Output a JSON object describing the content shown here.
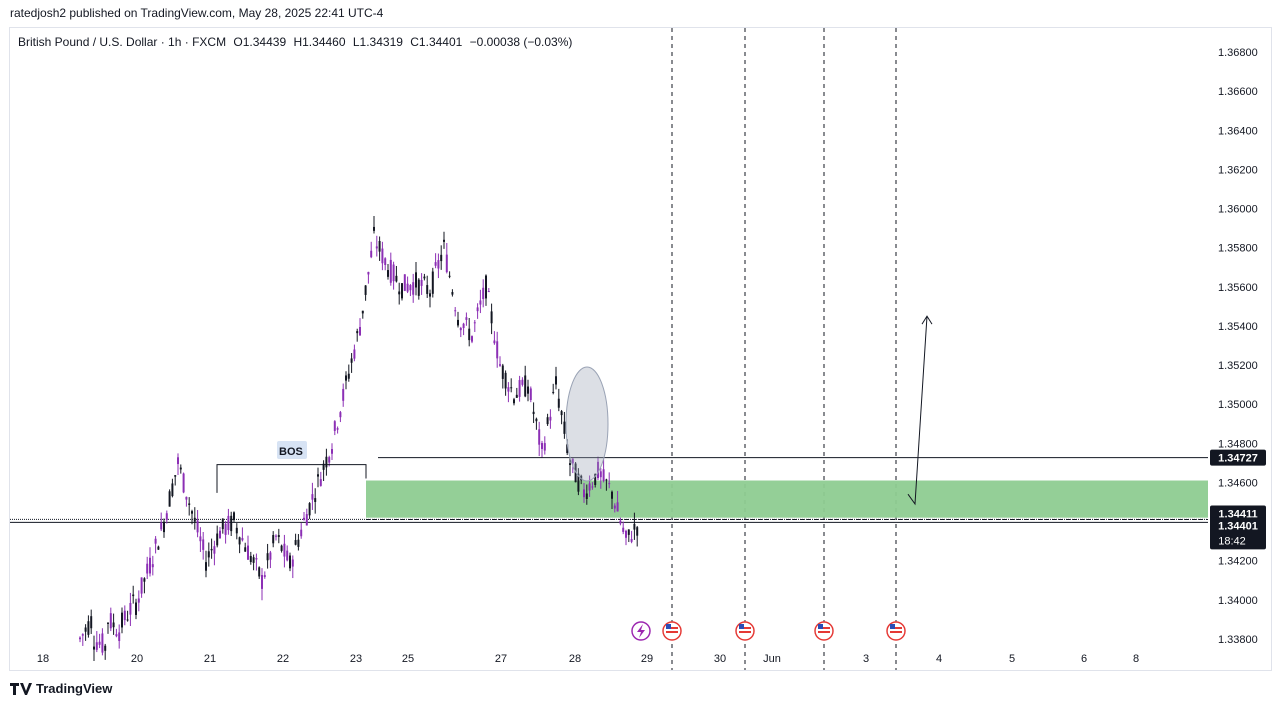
{
  "header": {
    "publisher": "ratedjosh2 published on TradingView.com, May 28, 2025 22:41 UTC-4"
  },
  "legend": {
    "symbol": "British Pound / U.S. Dollar · 1h · FXCM",
    "open": "O1.34439",
    "high": "H1.34460",
    "low": "L1.34319",
    "close": "C1.34401",
    "change": "−0.00038 (−0.03%)"
  },
  "footer": {
    "brand": "TradingView"
  },
  "chart_data": {
    "type": "candlestick",
    "symbol": "GBPUSD",
    "timeframe": "1h",
    "y_axis": {
      "range": [
        1.3375,
        1.3695
      ],
      "ticks": [
        "1.36800",
        "1.36600",
        "1.36400",
        "1.36200",
        "1.36000",
        "1.35800",
        "1.35600",
        "1.35400",
        "1.35200",
        "1.35000",
        "1.34800",
        "1.34600",
        "1.34400",
        "1.34200",
        "1.34000",
        "1.33800"
      ]
    },
    "x_axis": {
      "ticks": [
        "18",
        "20",
        "21",
        "22",
        "23",
        "25",
        "27",
        "28",
        "29",
        "30",
        "Jun",
        "3",
        "4",
        "5",
        "6",
        "8"
      ]
    },
    "price_labels": {
      "level": "1.34727",
      "zone_mid": "1.34411",
      "last": "1.34401",
      "countdown": "18:42"
    },
    "annotations": {
      "bos_label": "BOS",
      "bos_level": 1.34727,
      "demand_zone": [
        1.3442,
        1.3461
      ],
      "zone_midline": 1.34411,
      "last_price": 1.34401,
      "projection": {
        "from_price": 1.3454,
        "dip_price": 1.3449,
        "to_price": 1.3545
      }
    },
    "path_points": [
      [
        1.338,
        1.3392
      ],
      [
        1.338,
        1.3375
      ],
      [
        1.339,
        1.3383
      ],
      [
        1.3388,
        1.34
      ],
      [
        1.3398,
        1.3418
      ],
      [
        1.3418,
        1.344
      ],
      [
        1.344,
        1.347
      ],
      [
        1.347,
        1.3445
      ],
      [
        1.3445,
        1.342
      ],
      [
        1.342,
        1.3435
      ],
      [
        1.3435,
        1.344
      ],
      [
        1.344,
        1.3425
      ],
      [
        1.3425,
        1.341
      ],
      [
        1.341,
        1.3432
      ],
      [
        1.3432,
        1.3418
      ],
      [
        1.3418,
        1.344
      ],
      [
        1.344,
        1.346
      ],
      [
        1.346,
        1.348
      ],
      [
        1.348,
        1.351
      ],
      [
        1.351,
        1.354
      ],
      [
        1.354,
        1.3585
      ],
      [
        1.3585,
        1.357
      ],
      [
        1.357,
        1.356
      ],
      [
        1.356,
        1.3562
      ],
      [
        1.3562,
        1.3558
      ],
      [
        1.3558,
        1.358
      ],
      [
        1.358,
        1.3545
      ],
      [
        1.3545,
        1.3535
      ],
      [
        1.3535,
        1.356
      ],
      [
        1.356,
        1.352
      ],
      [
        1.352,
        1.3505
      ],
      [
        1.3505,
        1.351
      ],
      [
        1.351,
        1.3475
      ],
      [
        1.3475,
        1.351
      ],
      [
        1.351,
        1.347
      ],
      [
        1.347,
        1.3455
      ],
      [
        1.3455,
        1.3465
      ],
      [
        1.3465,
        1.3455
      ],
      [
        1.3455,
        1.343
      ],
      [
        1.343,
        1.344
      ]
    ]
  }
}
